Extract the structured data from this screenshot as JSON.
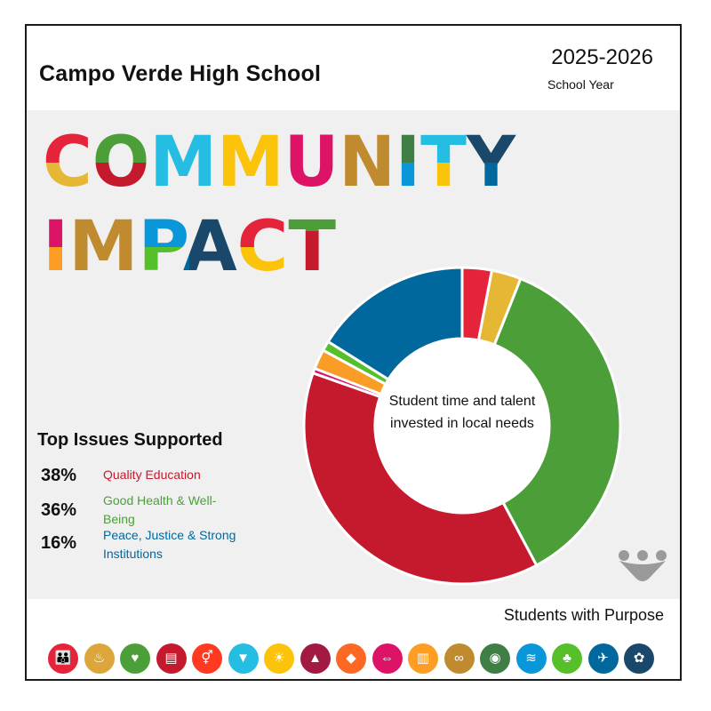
{
  "header": {
    "school_name": "Campo Verde High School",
    "year": "2025-2026",
    "year_label": "School Year"
  },
  "headline": {
    "line1": "COMMUNITY",
    "line2": "IMPACT"
  },
  "top_issues": {
    "title": "Top Issues Supported",
    "items": [
      {
        "percent": "38%",
        "label": "Quality Education",
        "color": "#c5192d"
      },
      {
        "percent": "36%",
        "label": "Good Health & Well-Being",
        "color": "#4c9f38"
      },
      {
        "percent": "16%",
        "label": "Peace, Justice & Strong Institutions",
        "color": "#00689d"
      }
    ]
  },
  "chart_data": {
    "type": "pie",
    "center_label": "Student time and talent invested in local needs",
    "series": [
      {
        "slice": 1,
        "value": 3,
        "color": "#e5243b"
      },
      {
        "slice": 2,
        "value": 3,
        "color": "#e5b735"
      },
      {
        "slice": 3,
        "value": 36,
        "color": "#4c9f38"
      },
      {
        "slice": 4,
        "value": 38,
        "color": "#c5192d"
      },
      {
        "slice": 5,
        "value": 0.5,
        "color": "#dd1367"
      },
      {
        "slice": 6,
        "value": 2,
        "color": "#f99d26"
      },
      {
        "slice": 7,
        "value": 1,
        "color": "#56c02b"
      },
      {
        "slice": 8,
        "value": 16,
        "color": "#00689d"
      }
    ]
  },
  "footer": {
    "tagline": "Students with Purpose",
    "sdg_icons": [
      {
        "name": "no-poverty-icon",
        "color": "#e5243b",
        "glyph": "👪"
      },
      {
        "name": "zero-hunger-icon",
        "color": "#dda63a",
        "glyph": "♨"
      },
      {
        "name": "good-health-icon",
        "color": "#4c9f38",
        "glyph": "♥"
      },
      {
        "name": "quality-education-icon",
        "color": "#c5192d",
        "glyph": "▤"
      },
      {
        "name": "gender-equality-icon",
        "color": "#ff3a21",
        "glyph": "⚥"
      },
      {
        "name": "clean-water-icon",
        "color": "#26bde2",
        "glyph": "▼"
      },
      {
        "name": "clean-energy-icon",
        "color": "#fcc30b",
        "glyph": "☀"
      },
      {
        "name": "decent-work-icon",
        "color": "#a21942",
        "glyph": "▲"
      },
      {
        "name": "industry-innovation-icon",
        "color": "#fd6925",
        "glyph": "◆"
      },
      {
        "name": "reduced-inequalities-icon",
        "color": "#dd1367",
        "glyph": "⇔"
      },
      {
        "name": "sustainable-cities-icon",
        "color": "#fd9d24",
        "glyph": "▥"
      },
      {
        "name": "responsible-consumption-icon",
        "color": "#bf8b2e",
        "glyph": "∞"
      },
      {
        "name": "climate-action-icon",
        "color": "#3f7e44",
        "glyph": "◉"
      },
      {
        "name": "life-below-water-icon",
        "color": "#0a97d9",
        "glyph": "≋"
      },
      {
        "name": "life-on-land-icon",
        "color": "#56c02b",
        "glyph": "♣"
      },
      {
        "name": "peace-justice-icon",
        "color": "#00689d",
        "glyph": "✈"
      },
      {
        "name": "partnerships-icon",
        "color": "#19486a",
        "glyph": "✿"
      }
    ]
  }
}
